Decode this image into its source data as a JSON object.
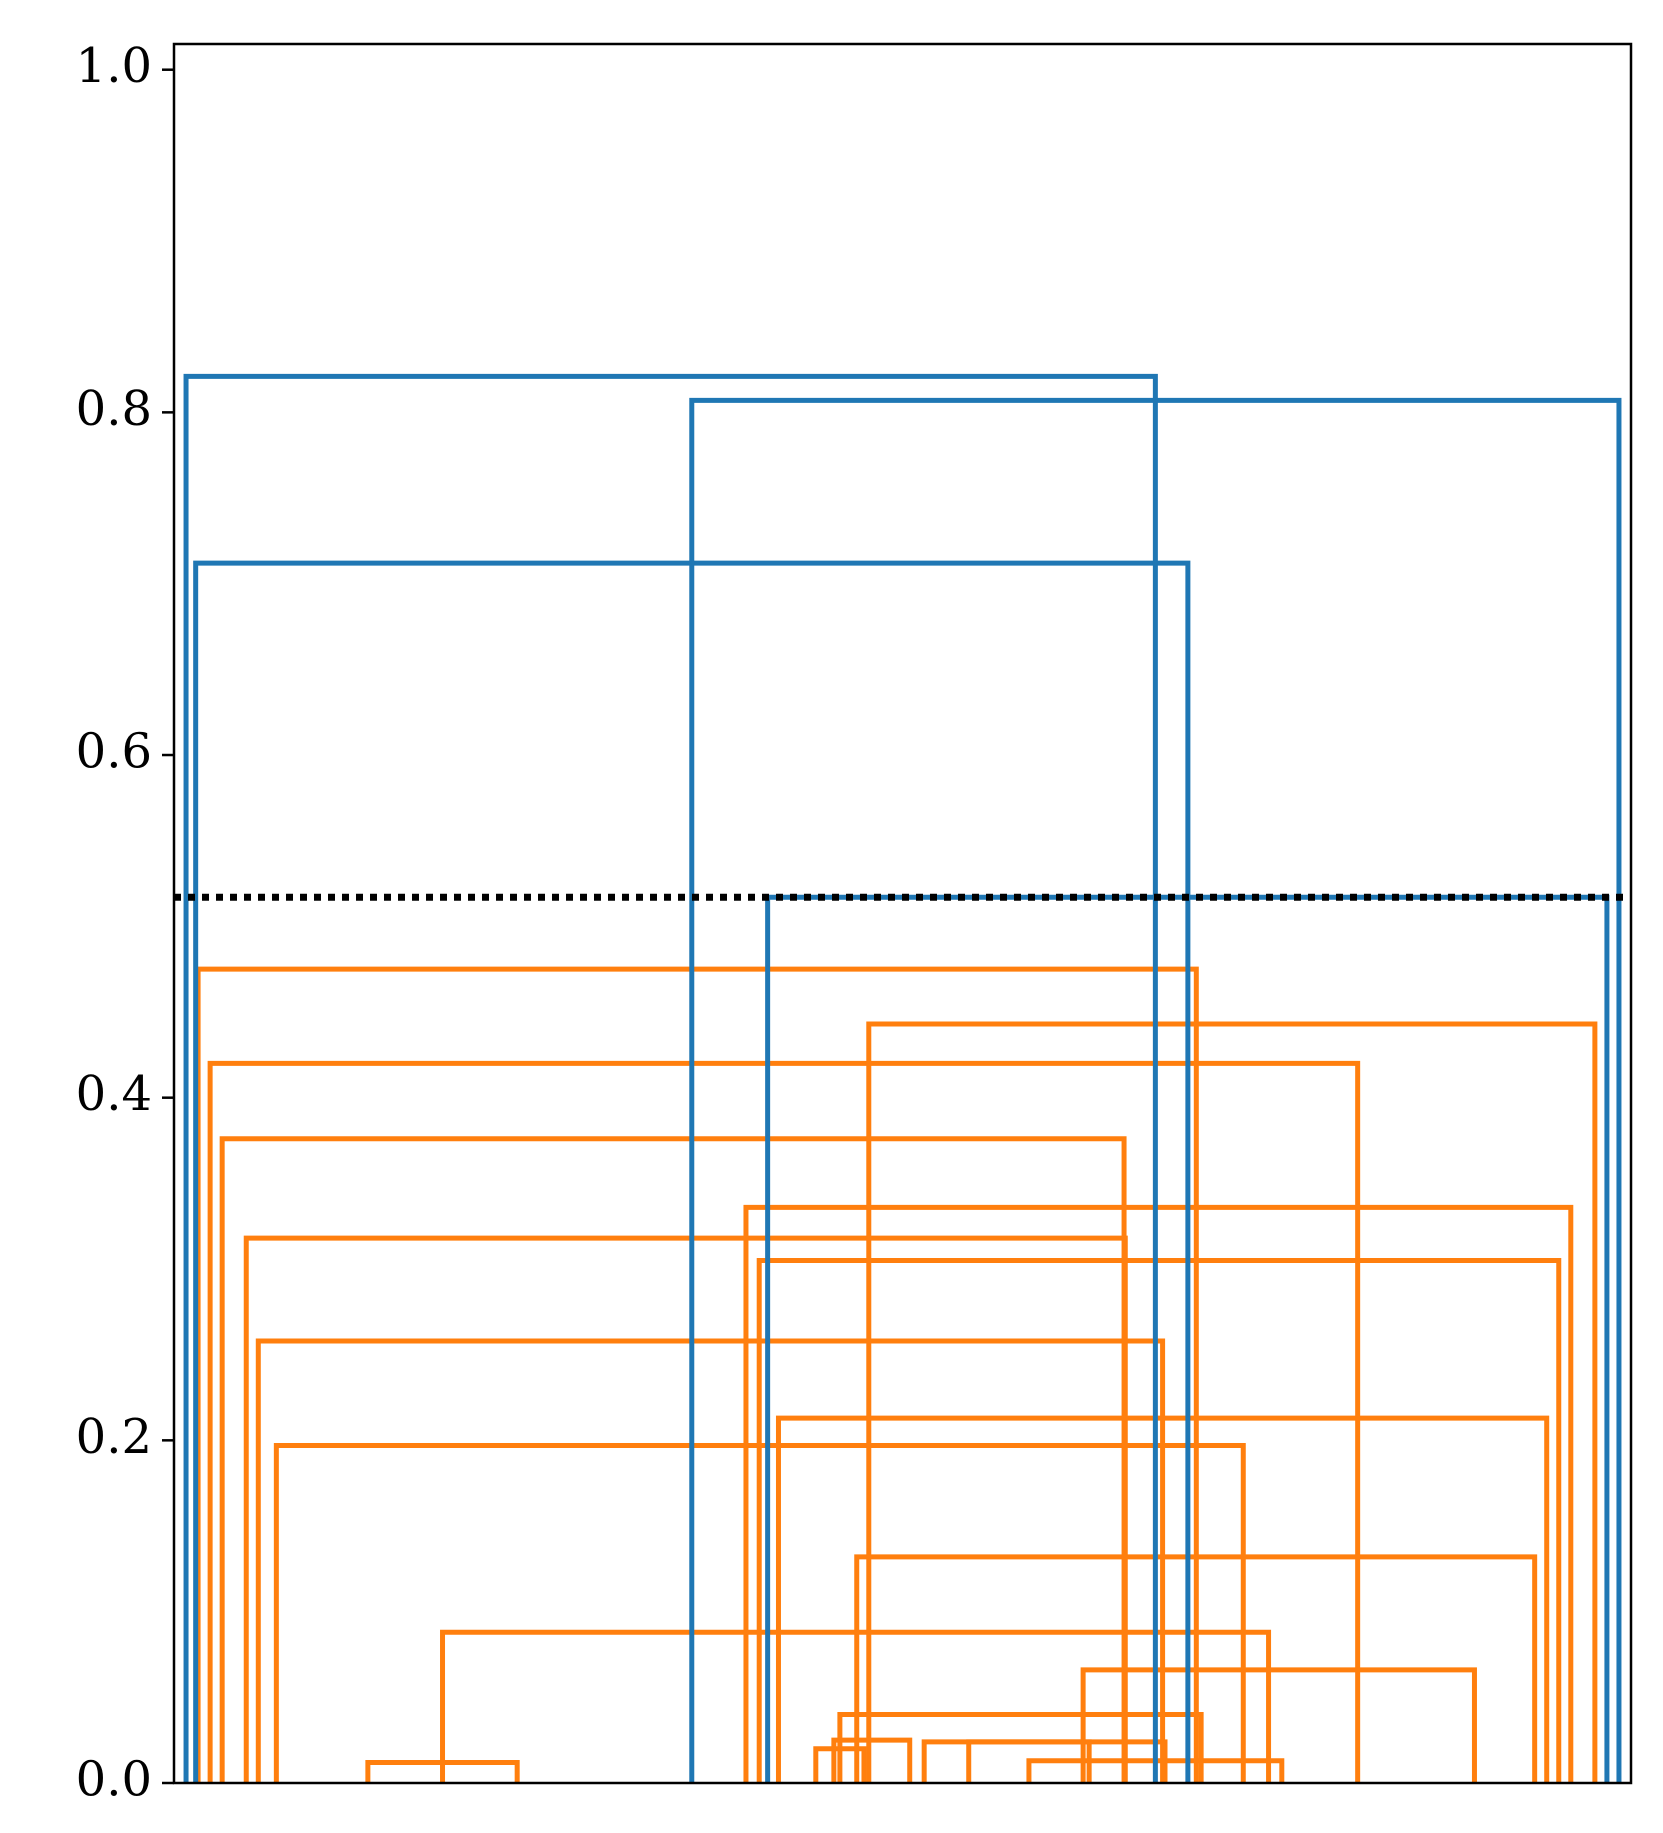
{
  "chart_data": {
    "type": "dendrogram",
    "title": "",
    "xlabel": "",
    "ylabel": "",
    "ylim": [
      0.0,
      1.015
    ],
    "yticks": [
      0.0,
      0.2,
      0.4,
      0.6,
      0.8,
      1.0
    ],
    "ytick_labels": [
      "0.0",
      "0.2",
      "0.4",
      "0.6",
      "0.8",
      "1.0"
    ],
    "x_ticks_shown": false,
    "grid": false,
    "legend": "none",
    "cut_threshold": 0.517,
    "colors": {
      "above_threshold": "#1f77b4",
      "cluster": "#ff7f0e",
      "threshold_line": "#000000",
      "axes": "#000000"
    },
    "merges": [
      {
        "left_x": 15.1,
        "right_x": 27.5,
        "height": 0.012
      },
      {
        "left_x": 52.3,
        "right_x": 56.3,
        "height": 0.02
      },
      {
        "left_x": 65.0,
        "right_x": 75.0,
        "height": 0.024
      },
      {
        "left_x": 61.3,
        "right_x": 81.3,
        "height": 0.024
      },
      {
        "left_x": 70.0,
        "right_x": 91.0,
        "height": 0.013
      },
      {
        "left_x": 53.8,
        "right_x": 60.1,
        "height": 0.025
      },
      {
        "left_x": 54.3,
        "right_x": 84.3,
        "height": 0.04
      },
      {
        "left_x": 74.5,
        "right_x": 107.0,
        "height": 0.066
      },
      {
        "left_x": 21.3,
        "right_x": 89.9,
        "height": 0.088
      },
      {
        "left_x": 55.7,
        "right_x": 112.0,
        "height": 0.132
      },
      {
        "left_x": 7.5,
        "right_x": 87.8,
        "height": 0.197
      },
      {
        "left_x": 49.2,
        "right_x": 113.0,
        "height": 0.213
      },
      {
        "left_x": 6.0,
        "right_x": 81.1,
        "height": 0.258
      },
      {
        "left_x": 47.6,
        "right_x": 114.0,
        "height": 0.305
      },
      {
        "left_x": 5.0,
        "right_x": 78.0,
        "height": 0.318
      },
      {
        "left_x": 46.5,
        "right_x": 115.0,
        "height": 0.336
      },
      {
        "left_x": 3.0,
        "right_x": 77.9,
        "height": 0.376
      },
      {
        "left_x": 2.0,
        "right_x": 97.3,
        "height": 0.42
      },
      {
        "left_x": 56.7,
        "right_x": 117.0,
        "height": 0.443
      },
      {
        "left_x": 1.0,
        "right_x": 83.9,
        "height": 0.475
      },
      {
        "left_x": 48.3,
        "right_x": 118.0,
        "height": 0.517,
        "color": "above_threshold"
      },
      {
        "left_x": 0.8,
        "right_x": 83.2,
        "height": 0.712,
        "color": "above_threshold"
      },
      {
        "left_x": 42.0,
        "right_x": 119.0,
        "height": 0.807,
        "color": "above_threshold"
      },
      {
        "left_x": 0.0,
        "right_x": 80.5,
        "height": 0.821,
        "color": "above_threshold"
      }
    ]
  }
}
